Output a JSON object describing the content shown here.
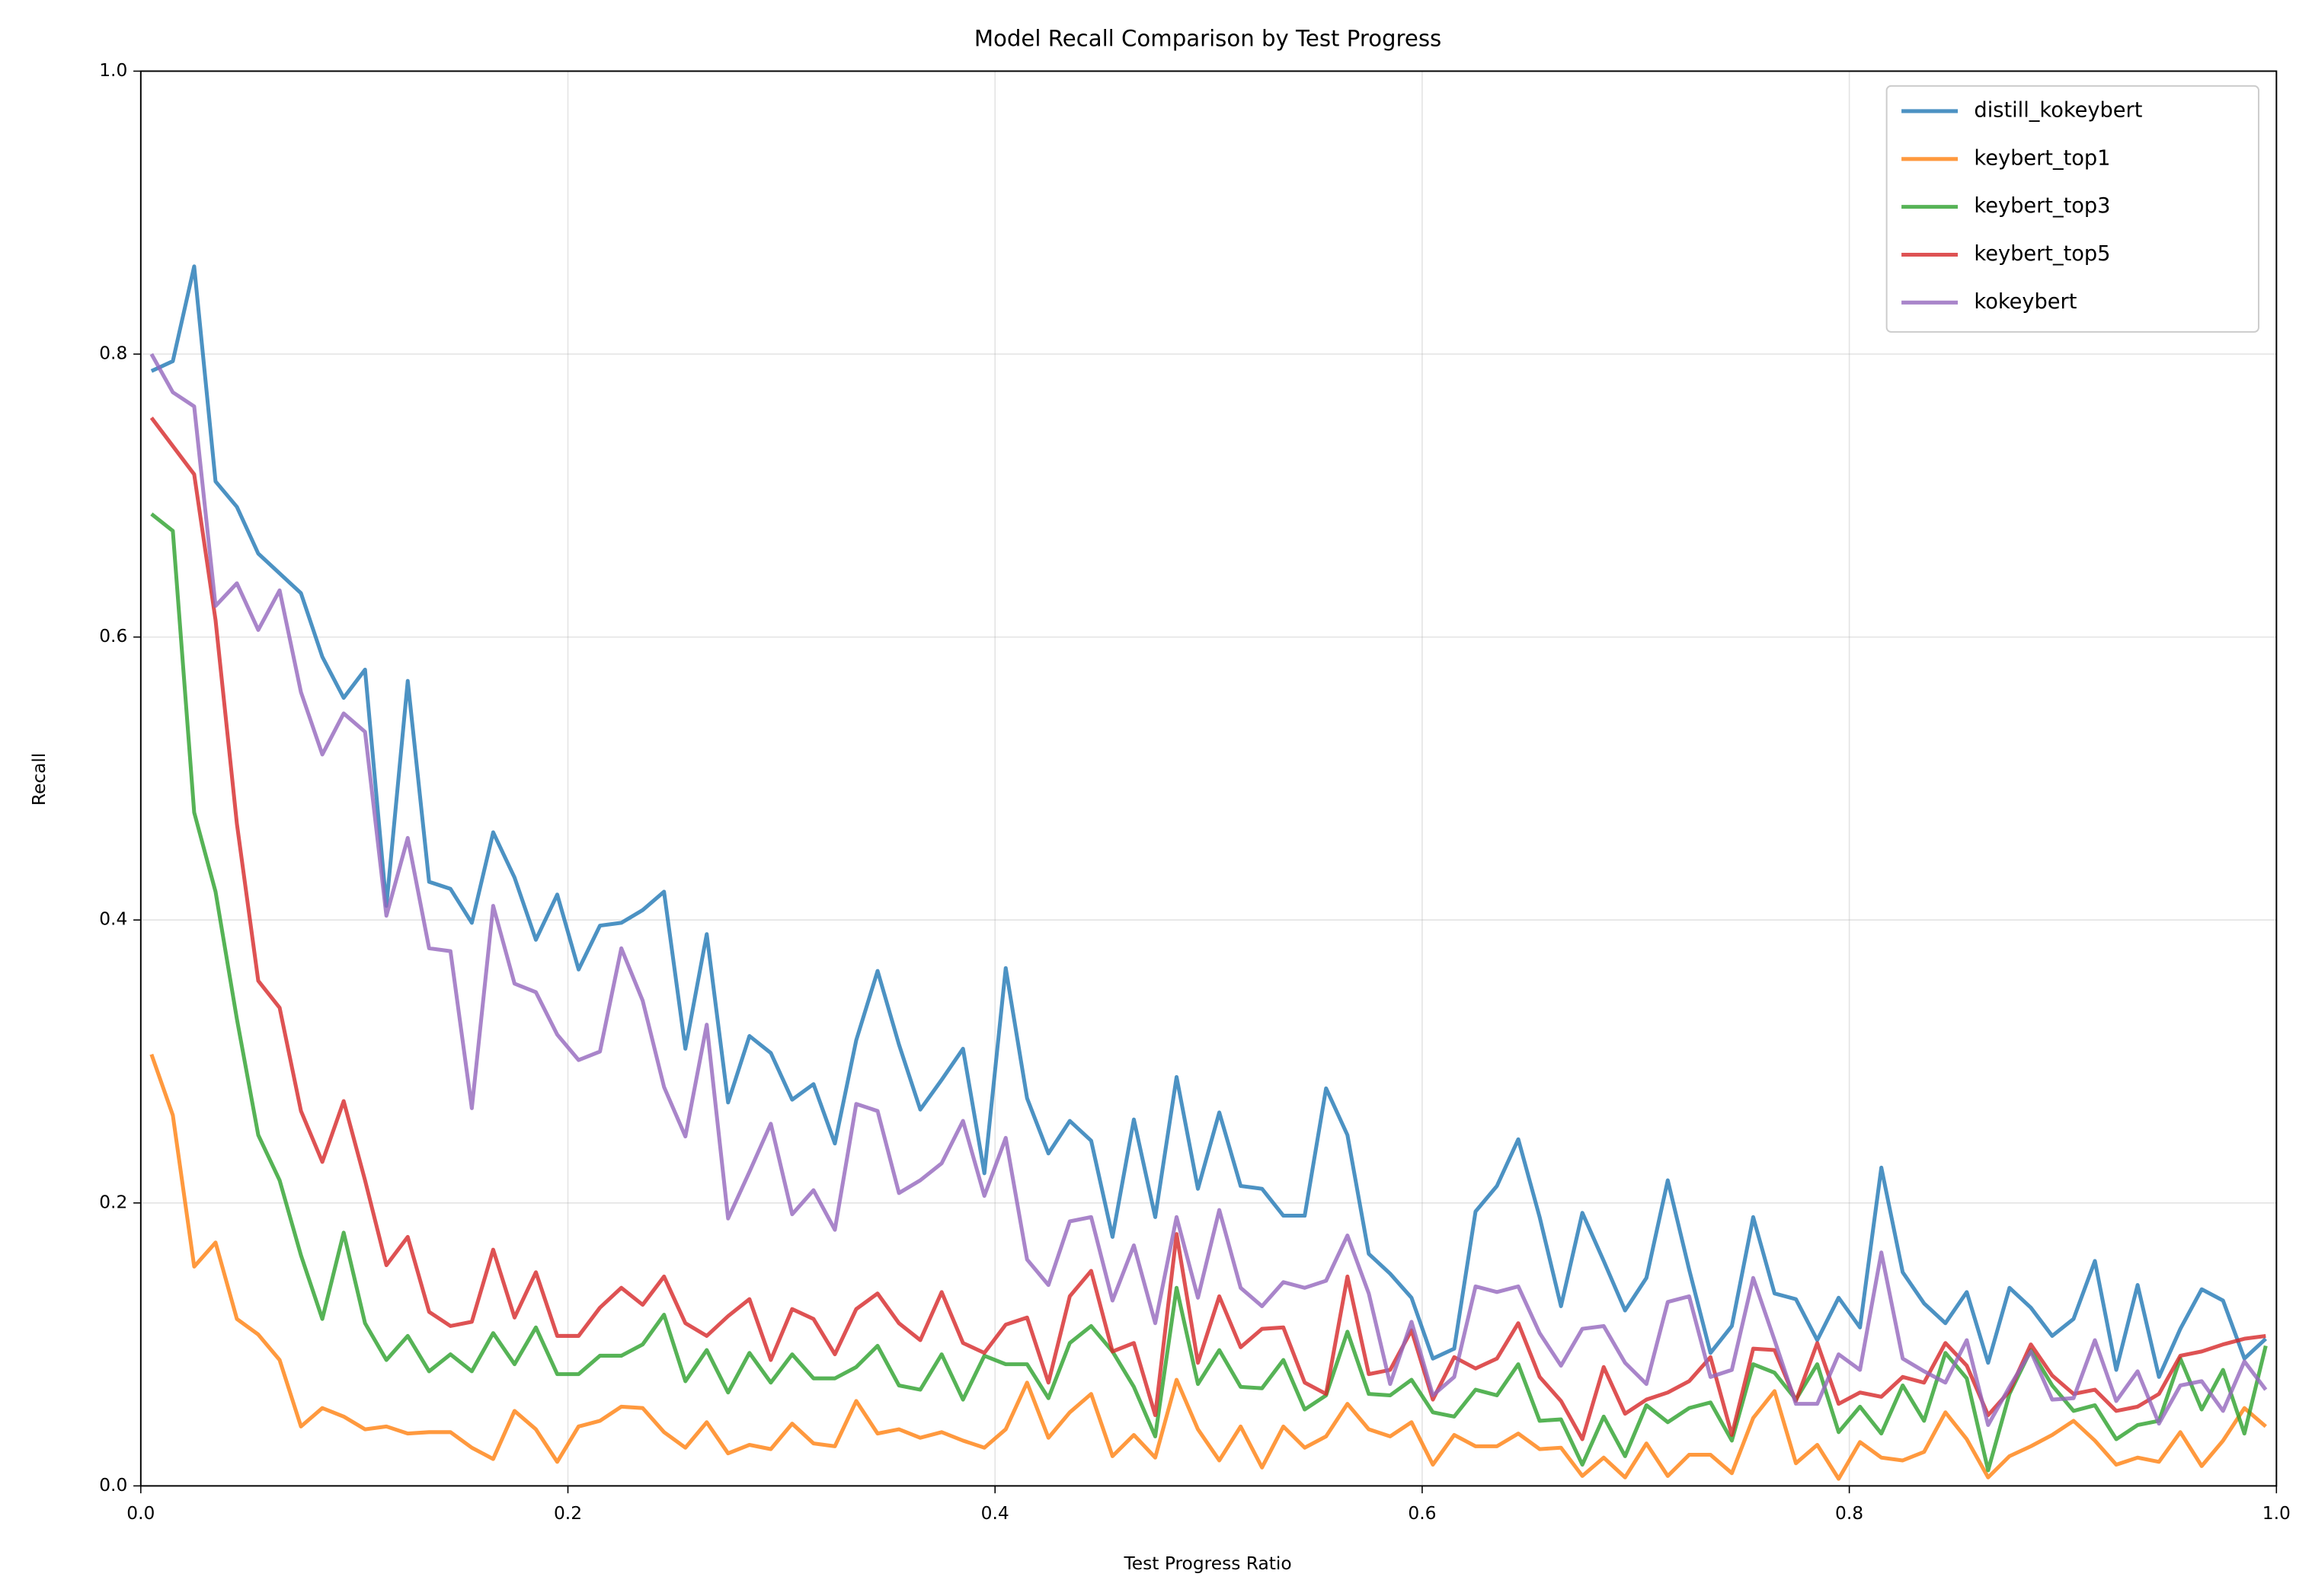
{
  "chart_data": {
    "type": "line",
    "title": "Model Recall Comparison by Test Progress",
    "x_label": "Test Progress Ratio",
    "y_label": "Recall",
    "xlim": [
      0,
      1
    ],
    "ylim": [
      0,
      1
    ],
    "xticks": [
      {
        "value": 0,
        "label": "0.0"
      },
      {
        "value": 0.2,
        "label": "0.2"
      },
      {
        "value": 0.4,
        "label": "0.4"
      },
      {
        "value": 0.6,
        "label": "0.6"
      },
      {
        "value": 0.8,
        "label": "0.8"
      },
      {
        "value": 1,
        "label": "1.0"
      }
    ],
    "yticks": [
      {
        "value": 0,
        "label": "0.0"
      },
      {
        "value": 0.2,
        "label": "0.2"
      },
      {
        "value": 0.4,
        "label": "0.4"
      },
      {
        "value": 0.6,
        "label": "0.6"
      },
      {
        "value": 0.8,
        "label": "0.8"
      },
      {
        "value": 1,
        "label": "1.0"
      }
    ],
    "grid": true,
    "legend": "upper right",
    "x": [
      0.005,
      0.015,
      0.025,
      0.035,
      0.045,
      0.055,
      0.065,
      0.075,
      0.085,
      0.095,
      0.105,
      0.115,
      0.125,
      0.135,
      0.145,
      0.155,
      0.165,
      0.175,
      0.185,
      0.195,
      0.205,
      0.215,
      0.225,
      0.235,
      0.245,
      0.255,
      0.265,
      0.275,
      0.285,
      0.295,
      0.305,
      0.315,
      0.325,
      0.335,
      0.345,
      0.355,
      0.365,
      0.375,
      0.385,
      0.395,
      0.405,
      0.415,
      0.425,
      0.435,
      0.445,
      0.455,
      0.465,
      0.475,
      0.485,
      0.495,
      0.505,
      0.515,
      0.525,
      0.535,
      0.545,
      0.555,
      0.565,
      0.575,
      0.585,
      0.595,
      0.605,
      0.615,
      0.625,
      0.635,
      0.645,
      0.655,
      0.665,
      0.675,
      0.685,
      0.695,
      0.705,
      0.715,
      0.725,
      0.735,
      0.745,
      0.755,
      0.765,
      0.775,
      0.785,
      0.795,
      0.805,
      0.815,
      0.825,
      0.835,
      0.845,
      0.855,
      0.865,
      0.875,
      0.885,
      0.895,
      0.905,
      0.915,
      0.925,
      0.935,
      0.945,
      0.955,
      0.965,
      0.975,
      0.985,
      0.995
    ],
    "series": [
      {
        "name": "distill_kokeybert",
        "color": "#1f77b4",
        "values": [
          0.788,
          0.795,
          0.862,
          0.71,
          0.692,
          0.659,
          0.645,
          0.631,
          0.586,
          0.557,
          0.577,
          0.41,
          0.569,
          0.427,
          0.422,
          0.398,
          0.462,
          0.43,
          0.386,
          0.418,
          0.365,
          0.396,
          0.398,
          0.407,
          0.42,
          0.309,
          0.39,
          0.271,
          0.318,
          0.306,
          0.273,
          0.284,
          0.242,
          0.315,
          0.364,
          0.312,
          0.266,
          0.287,
          0.309,
          0.221,
          0.366,
          0.274,
          0.235,
          0.258,
          0.244,
          0.176,
          0.259,
          0.19,
          0.289,
          0.21,
          0.264,
          0.212,
          0.21,
          0.191,
          0.191,
          0.281,
          0.248,
          0.164,
          0.15,
          0.133,
          0.09,
          0.097,
          0.194,
          0.212,
          0.245,
          0.19,
          0.127,
          0.193,
          0.159,
          0.124,
          0.147,
          0.216,
          0.153,
          0.094,
          0.113,
          0.19,
          0.136,
          0.132,
          0.103,
          0.133,
          0.112,
          0.225,
          0.151,
          0.129,
          0.115,
          0.137,
          0.087,
          0.14,
          0.126,
          0.106,
          0.118,
          0.159,
          0.082,
          0.142,
          0.077,
          0.111,
          0.139,
          0.131,
          0.09,
          0.104
        ]
      },
      {
        "name": "keybert_top1",
        "color": "#ff7f0e",
        "values": [
          0.305,
          0.262,
          0.155,
          0.172,
          0.118,
          0.107,
          0.089,
          0.042,
          0.055,
          0.049,
          0.04,
          0.042,
          0.037,
          0.038,
          0.038,
          0.027,
          0.019,
          0.053,
          0.04,
          0.017,
          0.042,
          0.046,
          0.056,
          0.055,
          0.038,
          0.027,
          0.045,
          0.023,
          0.029,
          0.026,
          0.044,
          0.03,
          0.028,
          0.06,
          0.037,
          0.04,
          0.034,
          0.038,
          0.032,
          0.027,
          0.04,
          0.073,
          0.034,
          0.052,
          0.065,
          0.021,
          0.036,
          0.02,
          0.075,
          0.04,
          0.018,
          0.042,
          0.013,
          0.042,
          0.027,
          0.035,
          0.058,
          0.04,
          0.035,
          0.045,
          0.015,
          0.036,
          0.028,
          0.028,
          0.037,
          0.026,
          0.027,
          0.007,
          0.02,
          0.006,
          0.03,
          0.007,
          0.022,
          0.022,
          0.009,
          0.048,
          0.067,
          0.016,
          0.029,
          0.005,
          0.031,
          0.02,
          0.018,
          0.024,
          0.052,
          0.033,
          0.006,
          0.021,
          0.028,
          0.036,
          0.046,
          0.032,
          0.015,
          0.02,
          0.017,
          0.038,
          0.014,
          0.032,
          0.055,
          0.042
        ]
      },
      {
        "name": "keybert_top3",
        "color": "#2ca02c",
        "values": [
          0.687,
          0.675,
          0.476,
          0.42,
          0.33,
          0.248,
          0.216,
          0.163,
          0.118,
          0.179,
          0.115,
          0.089,
          0.106,
          0.081,
          0.093,
          0.081,
          0.108,
          0.086,
          0.112,
          0.079,
          0.079,
          0.092,
          0.092,
          0.1,
          0.121,
          0.074,
          0.096,
          0.066,
          0.094,
          0.073,
          0.093,
          0.076,
          0.076,
          0.084,
          0.099,
          0.071,
          0.068,
          0.093,
          0.061,
          0.092,
          0.086,
          0.086,
          0.062,
          0.101,
          0.113,
          0.095,
          0.07,
          0.035,
          0.14,
          0.072,
          0.096,
          0.07,
          0.069,
          0.089,
          0.054,
          0.064,
          0.109,
          0.065,
          0.064,
          0.075,
          0.052,
          0.049,
          0.068,
          0.064,
          0.086,
          0.046,
          0.047,
          0.015,
          0.049,
          0.021,
          0.057,
          0.045,
          0.055,
          0.059,
          0.032,
          0.086,
          0.08,
          0.061,
          0.086,
          0.038,
          0.056,
          0.037,
          0.071,
          0.046,
          0.094,
          0.076,
          0.011,
          0.065,
          0.096,
          0.071,
          0.053,
          0.057,
          0.033,
          0.043,
          0.046,
          0.09,
          0.054,
          0.082,
          0.037,
          0.099
        ]
      },
      {
        "name": "keybert_top5",
        "color": "#d62728",
        "values": [
          0.755,
          0.735,
          0.715,
          0.612,
          0.468,
          0.357,
          0.338,
          0.265,
          0.229,
          0.272,
          0.216,
          0.156,
          0.176,
          0.123,
          0.113,
          0.116,
          0.167,
          0.119,
          0.151,
          0.106,
          0.106,
          0.126,
          0.14,
          0.128,
          0.148,
          0.115,
          0.106,
          0.12,
          0.132,
          0.089,
          0.125,
          0.118,
          0.093,
          0.125,
          0.136,
          0.115,
          0.103,
          0.137,
          0.101,
          0.094,
          0.114,
          0.119,
          0.073,
          0.134,
          0.152,
          0.095,
          0.101,
          0.05,
          0.178,
          0.087,
          0.134,
          0.098,
          0.111,
          0.112,
          0.073,
          0.065,
          0.148,
          0.079,
          0.082,
          0.11,
          0.061,
          0.091,
          0.083,
          0.09,
          0.115,
          0.077,
          0.06,
          0.033,
          0.084,
          0.051,
          0.061,
          0.066,
          0.074,
          0.091,
          0.036,
          0.097,
          0.096,
          0.06,
          0.101,
          0.058,
          0.066,
          0.063,
          0.077,
          0.073,
          0.101,
          0.085,
          0.05,
          0.067,
          0.1,
          0.078,
          0.065,
          0.068,
          0.053,
          0.056,
          0.065,
          0.092,
          0.095,
          0.1,
          0.104,
          0.106
        ]
      },
      {
        "name": "kokeybert",
        "color": "#9467bd",
        "values": [
          0.8,
          0.773,
          0.763,
          0.622,
          0.638,
          0.605,
          0.633,
          0.561,
          0.517,
          0.546,
          0.533,
          0.403,
          0.458,
          0.38,
          0.378,
          0.267,
          0.41,
          0.355,
          0.349,
          0.319,
          0.301,
          0.307,
          0.38,
          0.343,
          0.282,
          0.247,
          0.326,
          0.189,
          0.222,
          0.256,
          0.192,
          0.209,
          0.181,
          0.27,
          0.265,
          0.207,
          0.216,
          0.228,
          0.258,
          0.205,
          0.246,
          0.16,
          0.142,
          0.187,
          0.19,
          0.131,
          0.17,
          0.115,
          0.19,
          0.133,
          0.195,
          0.14,
          0.127,
          0.144,
          0.14,
          0.145,
          0.177,
          0.136,
          0.072,
          0.116,
          0.064,
          0.077,
          0.141,
          0.137,
          0.141,
          0.108,
          0.085,
          0.111,
          0.113,
          0.087,
          0.072,
          0.13,
          0.134,
          0.077,
          0.082,
          0.147,
          0.103,
          0.058,
          0.058,
          0.093,
          0.082,
          0.165,
          0.09,
          0.081,
          0.073,
          0.103,
          0.043,
          0.07,
          0.095,
          0.061,
          0.062,
          0.103,
          0.06,
          0.081,
          0.044,
          0.071,
          0.074,
          0.053,
          0.088,
          0.068
        ]
      }
    ]
  }
}
